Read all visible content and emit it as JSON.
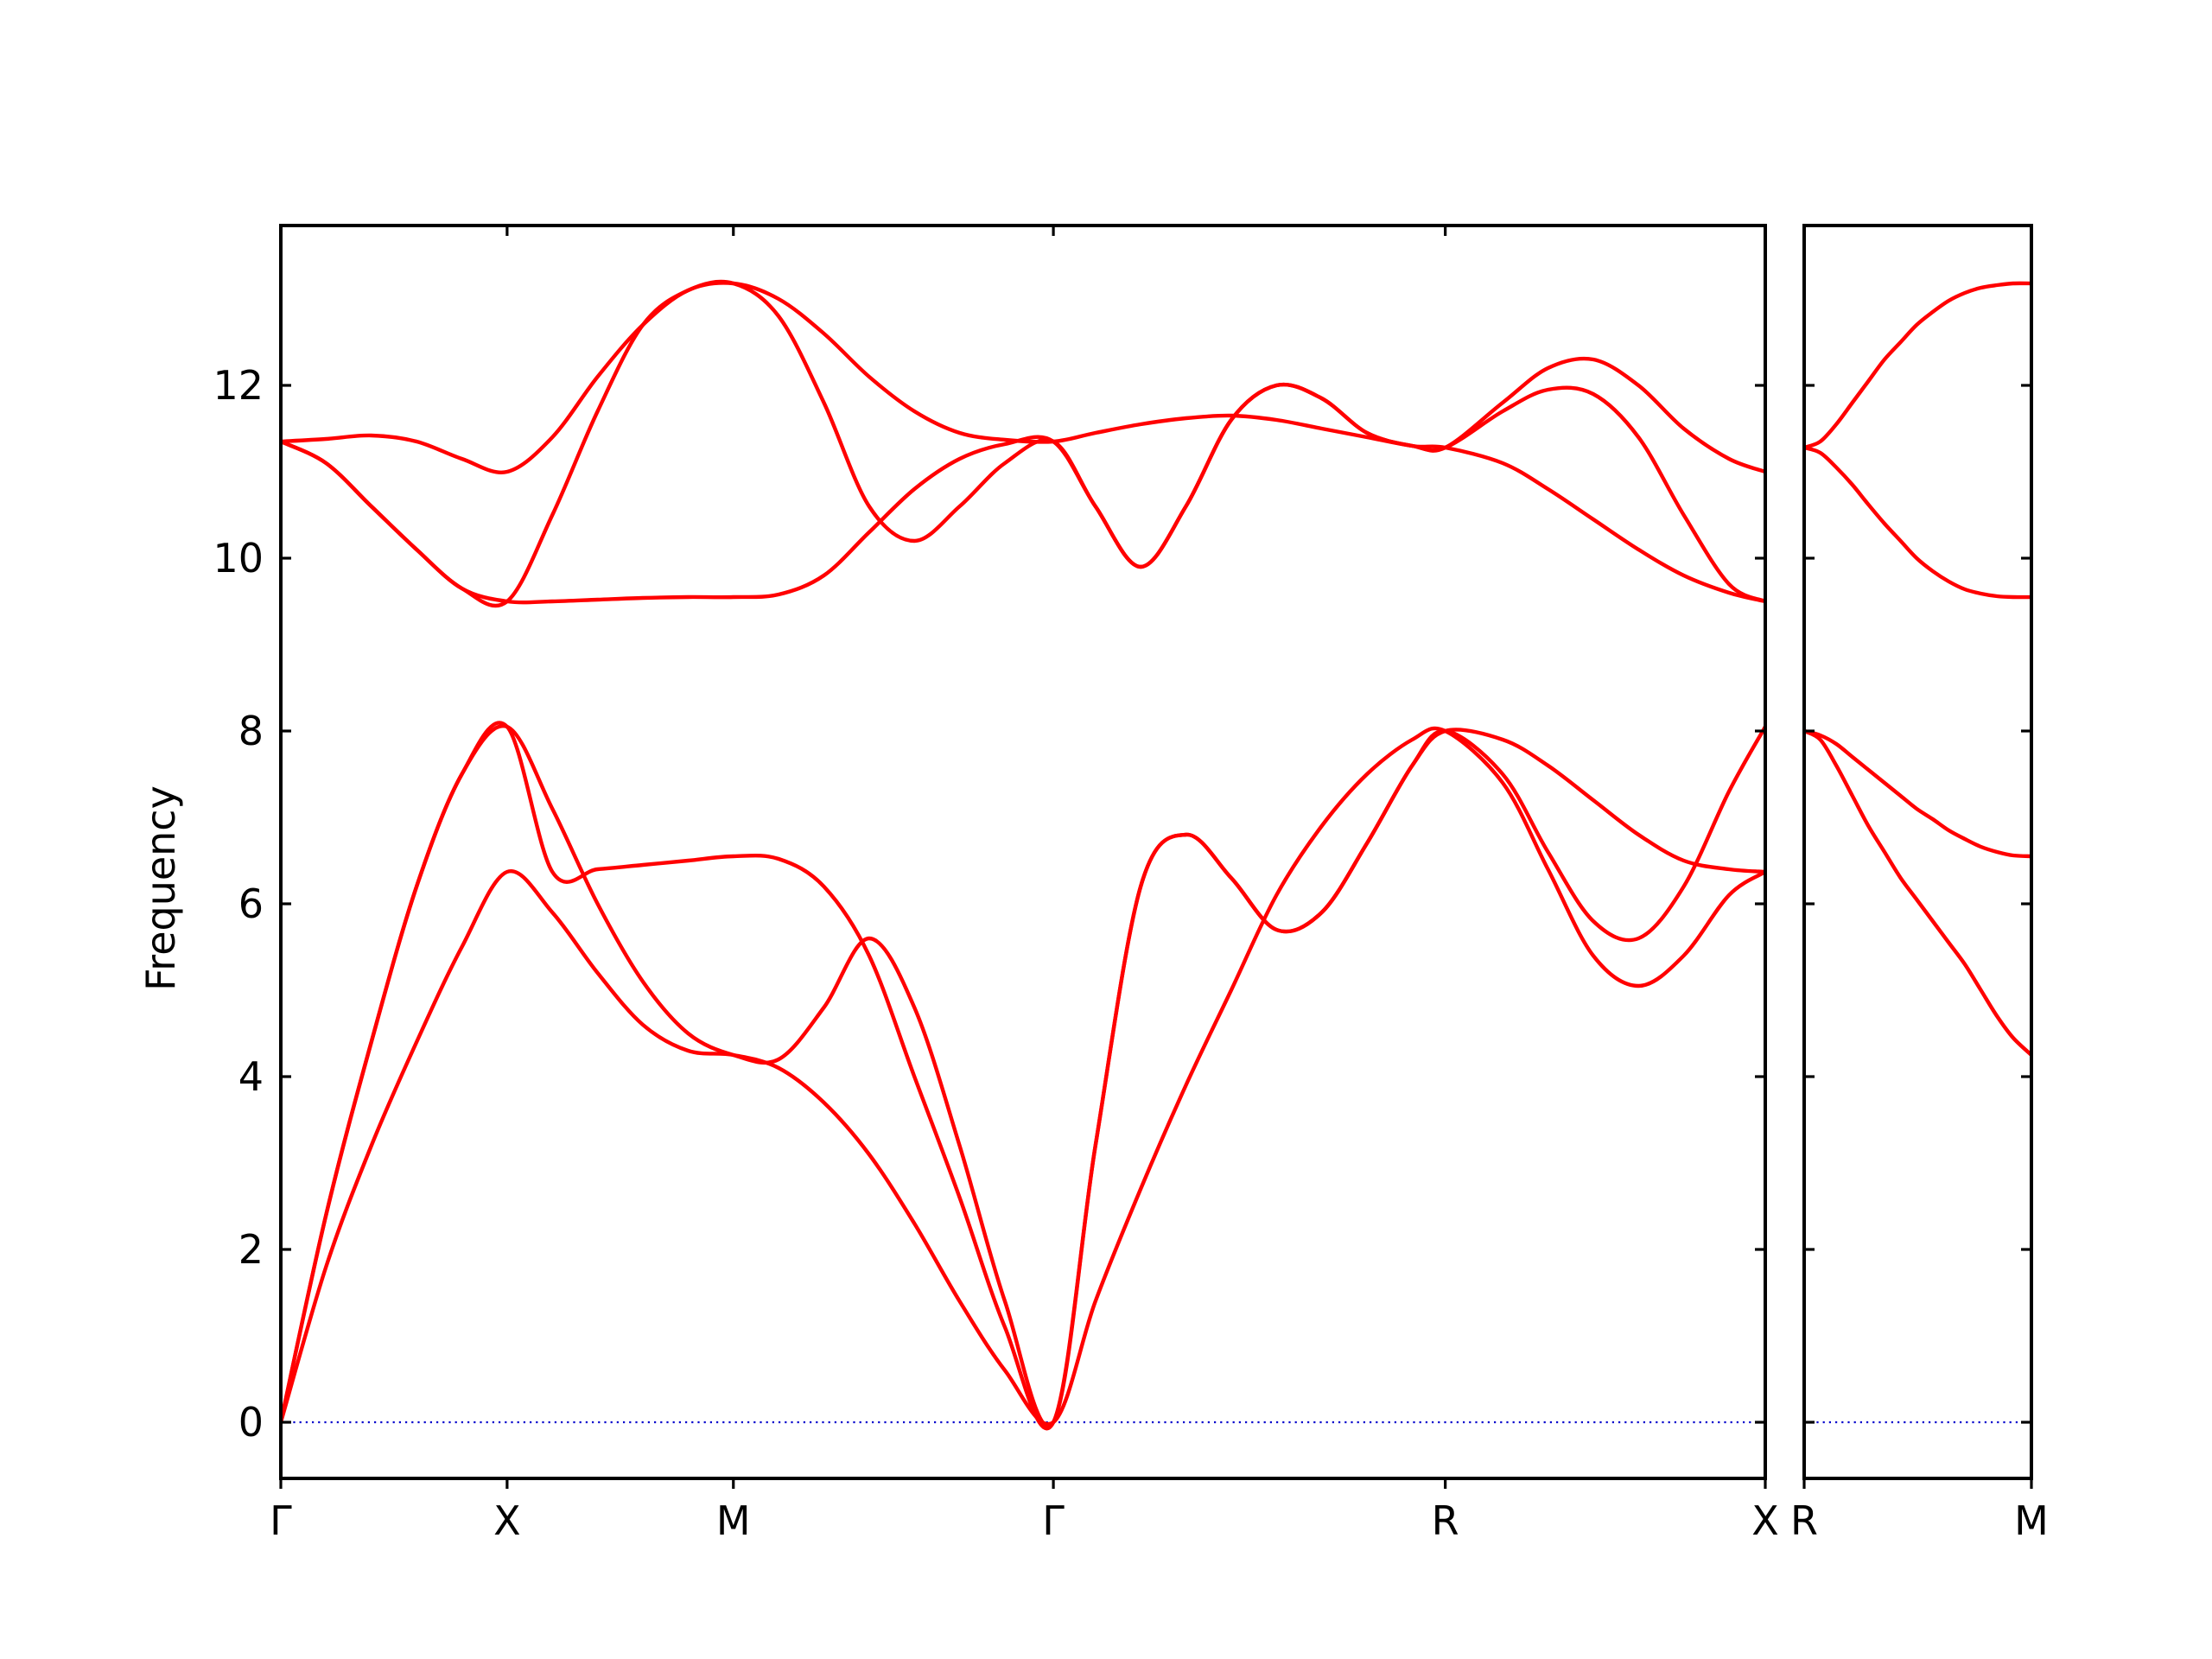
{
  "chart_data": {
    "type": "line",
    "ylabel": "Frequency",
    "ylim": [
      -0.65,
      13.85
    ],
    "yticks": [
      0,
      2,
      4,
      6,
      8,
      10,
      12
    ],
    "grid": false,
    "line_color": "#ff0000",
    "zero_line_color": "#0000cc",
    "panels": [
      {
        "xticks": [
          {
            "label": "Γ",
            "x": 0.0
          },
          {
            "label": "X",
            "x": 0.5
          },
          {
            "label": "M",
            "x": 1.0
          },
          {
            "label": "Γ",
            "x": 1.7071
          },
          {
            "label": "R",
            "x": 2.5731
          },
          {
            "label": "X",
            "x": 3.2802
          }
        ],
        "xlim": [
          0.0,
          3.2802
        ],
        "zero_line": true,
        "series": [
          {
            "x": [
              0,
              0.1,
              0.2,
              0.3,
              0.4,
              0.5,
              0.6,
              0.7,
              0.8,
              0.9,
              1.0,
              1.1,
              1.2,
              1.3,
              1.4,
              1.5,
              1.6,
              1.7071,
              1.8,
              1.9,
              2.0,
              2.1,
              2.2,
              2.3,
              2.4,
              2.5,
              2.5731,
              2.7,
              2.8,
              2.9,
              3.0,
              3.1,
              3.2,
              3.2802
            ],
            "values": [
              0,
              1.8,
              3.2,
              4.4,
              5.5,
              6.37,
              5.9,
              5.2,
              4.6,
              4.3,
              4.25,
              4.1,
              3.7,
              3.1,
              2.3,
              1.4,
              0.6,
              0,
              1.4,
              2.7,
              3.9,
              5.0,
              6.1,
              6.9,
              7.5,
              7.9,
              8.0,
              7.4,
              6.4,
              5.4,
              5.05,
              5.4,
              6.1,
              6.37
            ]
          },
          {
            "x": [
              0,
              0.1,
              0.2,
              0.3,
              0.4,
              0.5,
              0.6,
              0.7,
              0.8,
              0.9,
              1.0,
              1.1,
              1.2,
              1.3,
              1.4,
              1.5,
              1.6,
              1.7071,
              1.8,
              1.9,
              2.0,
              2.1,
              2.2,
              2.3,
              2.4,
              2.5,
              2.5731,
              2.7,
              2.8,
              2.9,
              3.0,
              3.1,
              3.2,
              3.2802
            ],
            "values": [
              0,
              2.4,
              4.4,
              6.2,
              7.5,
              8.05,
              7.1,
              6.0,
              5.1,
              4.5,
              4.25,
              4.2,
              4.8,
              5.6,
              4.8,
              3.2,
              1.4,
              0,
              3.2,
              6.2,
              6.8,
              6.3,
              5.7,
              5.9,
              6.7,
              7.6,
              8.0,
              7.5,
              6.6,
              5.8,
              5.6,
              6.2,
              7.3,
              8.05
            ]
          },
          {
            "x": [
              0,
              0.1,
              0.2,
              0.3,
              0.4,
              0.5,
              0.6,
              0.7,
              0.8,
              0.9,
              1.0,
              1.1,
              1.2,
              1.3,
              1.4,
              1.5,
              1.6,
              1.7071,
              1.8,
              1.9,
              2.0,
              2.1,
              2.2,
              2.3,
              2.4,
              2.5,
              2.5731,
              2.7,
              2.8,
              2.9,
              3.0,
              3.1,
              3.2,
              3.2802
            ],
            "values": [
              0,
              2.4,
              4.4,
              6.2,
              7.5,
              8.05,
              6.37,
              6.4,
              6.45,
              6.5,
              6.55,
              6.52,
              6.2,
              5.4,
              4.0,
              2.6,
              1.1,
              0,
              3.2,
              6.2,
              6.8,
              6.3,
              5.7,
              5.9,
              6.7,
              7.6,
              8.0,
              7.9,
              7.6,
              7.2,
              6.8,
              6.5,
              6.4,
              6.37
            ]
          },
          {
            "x": [
              0,
              0.1,
              0.2,
              0.3,
              0.4,
              0.5,
              0.6,
              0.7,
              0.8,
              0.9,
              1.0,
              1.1,
              1.2,
              1.3,
              1.4,
              1.5,
              1.6,
              1.7071,
              1.8,
              1.9,
              2.0,
              2.1,
              2.2,
              2.3,
              2.4,
              2.5,
              2.5731,
              2.7,
              2.8,
              2.9,
              3.0,
              3.1,
              3.2,
              3.2802
            ],
            "values": [
              11.35,
              11.38,
              11.42,
              11.35,
              11.15,
              11.0,
              11.4,
              12.1,
              12.7,
              13.1,
              13.18,
              13.0,
              12.6,
              12.1,
              11.7,
              11.45,
              11.37,
              11.35,
              11.45,
              11.55,
              11.62,
              11.65,
              11.6,
              11.5,
              11.4,
              11.3,
              11.28,
              11.8,
              12.2,
              12.3,
              12.0,
              11.5,
              11.15,
              11.0
            ]
          },
          {
            "x": [
              0,
              0.1,
              0.2,
              0.3,
              0.4,
              0.5,
              0.6,
              0.7,
              0.8,
              0.9,
              1.0,
              1.1,
              1.2,
              1.3,
              1.4,
              1.5,
              1.6,
              1.7071,
              1.8,
              1.9,
              2.0,
              2.1,
              2.2,
              2.3,
              2.4,
              2.5,
              2.5731,
              2.7,
              2.8,
              2.9,
              3.0,
              3.1,
              3.2,
              3.2802
            ],
            "values": [
              11.35,
              11.1,
              10.6,
              10.1,
              9.65,
              9.5,
              10.5,
              11.7,
              12.7,
              13.1,
              13.18,
              12.8,
              11.8,
              10.6,
              10.2,
              10.6,
              11.1,
              11.35,
              10.6,
              9.9,
              10.6,
              11.6,
              12.0,
              11.85,
              11.45,
              11.3,
              11.28,
              11.7,
              11.95,
              11.9,
              11.4,
              10.5,
              9.7,
              9.5
            ]
          },
          {
            "x": [
              0,
              0.1,
              0.2,
              0.3,
              0.4,
              0.5,
              0.6,
              0.7,
              0.8,
              0.9,
              1.0,
              1.1,
              1.2,
              1.3,
              1.4,
              1.5,
              1.6,
              1.7071,
              1.8,
              1.9,
              2.0,
              2.1,
              2.2,
              2.3,
              2.4,
              2.5,
              2.5731,
              2.7,
              2.8,
              2.9,
              3.0,
              3.1,
              3.2,
              3.2802
            ],
            "values": [
              11.35,
              11.1,
              10.6,
              10.1,
              9.65,
              9.5,
              9.5,
              9.52,
              9.54,
              9.55,
              9.55,
              9.58,
              9.8,
              10.3,
              10.8,
              11.15,
              11.32,
              11.35,
              10.6,
              9.9,
              10.6,
              11.6,
              12.0,
              11.85,
              11.45,
              11.3,
              11.28,
              11.1,
              10.8,
              10.45,
              10.1,
              9.8,
              9.6,
              9.5
            ]
          }
        ]
      },
      {
        "xticks": [
          {
            "label": "R",
            "x": 0.0
          },
          {
            "label": "M",
            "x": 0.7071
          }
        ],
        "xlim": [
          0.0,
          0.7071
        ],
        "zero_line": true,
        "series": [
          {
            "x": [
              0,
              0.05,
              0.1,
              0.15,
              0.2,
              0.25,
              0.3,
              0.35,
              0.4,
              0.45,
              0.5,
              0.55,
              0.6,
              0.65,
              0.7071
            ],
            "values": [
              8.0,
              7.9,
              7.6,
              7.25,
              6.9,
              6.6,
              6.3,
              6.05,
              5.8,
              5.55,
              5.3,
              5.0,
              4.7,
              4.45,
              4.25
            ]
          },
          {
            "x": [
              0,
              0.05,
              0.1,
              0.15,
              0.2,
              0.25,
              0.3,
              0.35,
              0.4,
              0.45,
              0.5,
              0.55,
              0.6,
              0.65,
              0.7071
            ],
            "values": [
              8.0,
              7.95,
              7.85,
              7.7,
              7.55,
              7.4,
              7.25,
              7.1,
              6.98,
              6.85,
              6.75,
              6.66,
              6.6,
              6.56,
              6.55
            ]
          },
          {
            "x": [
              0,
              0.05,
              0.1,
              0.15,
              0.2,
              0.25,
              0.3,
              0.35,
              0.4,
              0.45,
              0.5,
              0.55,
              0.6,
              0.65,
              0.7071
            ],
            "values": [
              11.28,
              11.35,
              11.55,
              11.8,
              12.05,
              12.3,
              12.5,
              12.7,
              12.85,
              12.98,
              13.07,
              13.13,
              13.16,
              13.18,
              13.18
            ]
          },
          {
            "x": [
              0,
              0.05,
              0.1,
              0.15,
              0.2,
              0.25,
              0.3,
              0.35,
              0.4,
              0.45,
              0.5,
              0.55,
              0.6,
              0.65,
              0.7071
            ],
            "values": [
              11.28,
              11.22,
              11.05,
              10.85,
              10.62,
              10.4,
              10.2,
              10.0,
              9.85,
              9.73,
              9.64,
              9.59,
              9.56,
              9.55,
              9.55
            ]
          }
        ]
      }
    ]
  }
}
